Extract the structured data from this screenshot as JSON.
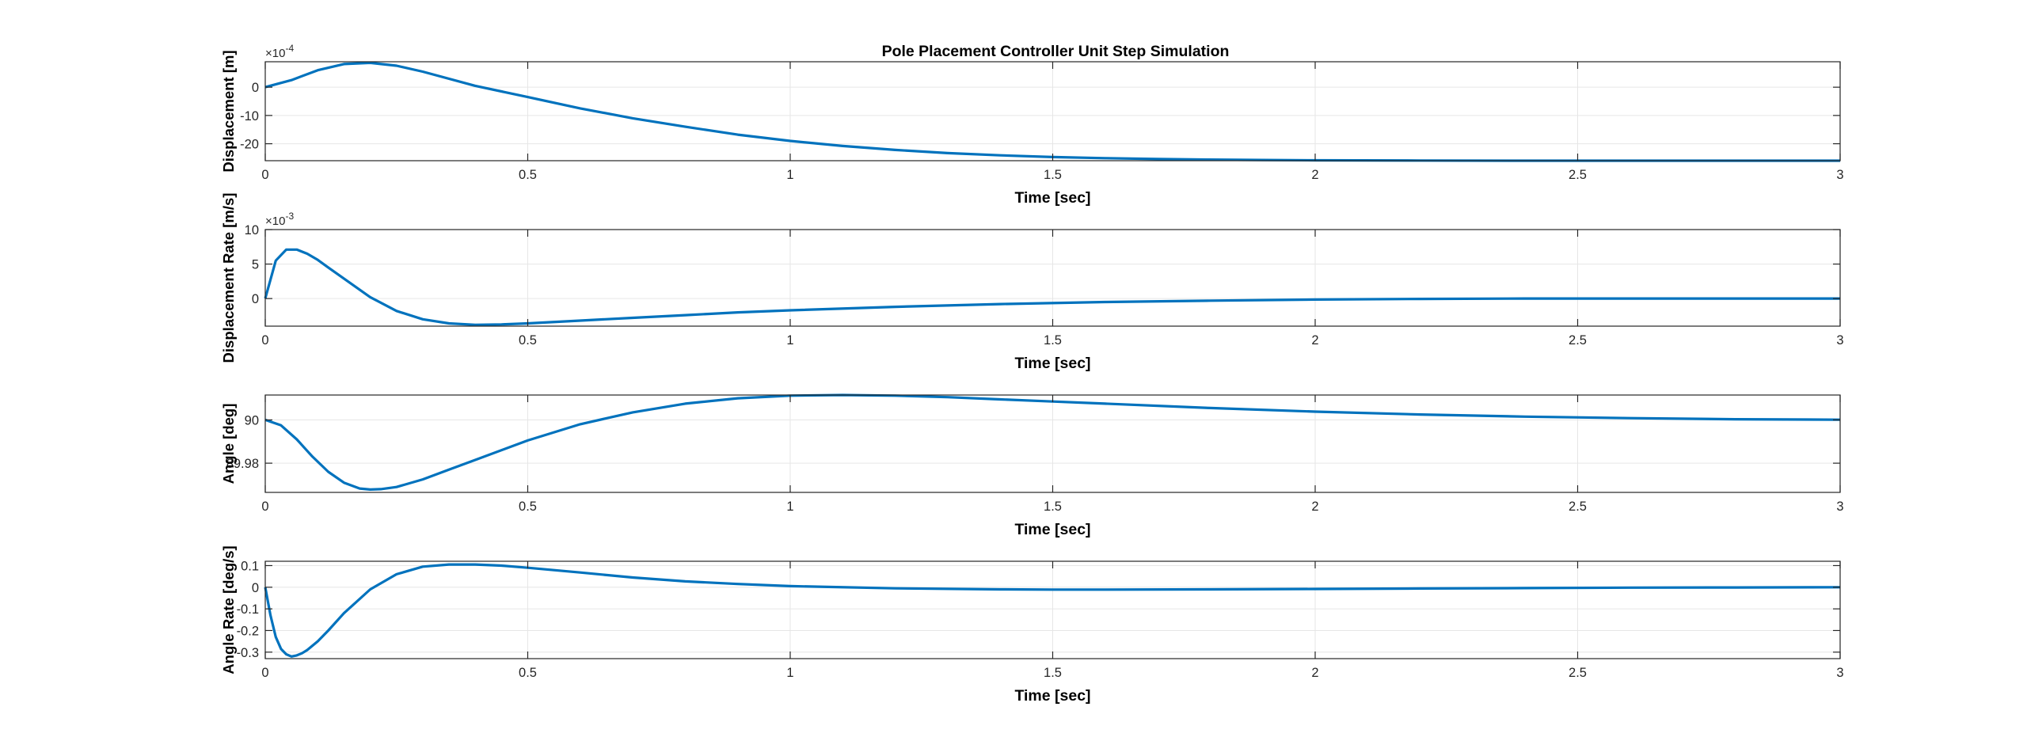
{
  "figure_title": "Pole Placement Controller Unit Step Simulation",
  "colors": {
    "line": "#0072BD",
    "axis": "#262626",
    "grid": "#e6e6e6"
  },
  "chart_data": [
    {
      "type": "line",
      "title": "Pole Placement Controller Unit Step Simulation",
      "xlabel": "Time [sec]",
      "ylabel": "Displacement [m]",
      "exponent_label": "×10^-4",
      "scale": 0.0001,
      "xlim": [
        0,
        3
      ],
      "ylim": [
        -26,
        9
      ],
      "x_ticks": [
        0,
        0.5,
        1,
        1.5,
        2,
        2.5,
        3
      ],
      "x_ticklabels": [
        "0",
        "0.5",
        "1",
        "1.5",
        "2",
        "2.5",
        "3"
      ],
      "y_ticks": [
        -20,
        -10,
        0
      ],
      "y_ticklabels": [
        "-20",
        "-10",
        "0"
      ],
      "grid": true,
      "series": [
        {
          "x": [
            0,
            0.05,
            0.1,
            0.15,
            0.2,
            0.25,
            0.3,
            0.4,
            0.5,
            0.6,
            0.7,
            0.8,
            0.9,
            1.0,
            1.1,
            1.2,
            1.3,
            1.4,
            1.5,
            1.6,
            1.7,
            1.8,
            1.9,
            2.0,
            2.2,
            2.4,
            2.6,
            2.8,
            3.0
          ],
          "values": [
            0,
            2.5,
            6,
            8.2,
            8.6,
            7.6,
            5.5,
            0.5,
            -3.5,
            -7.5,
            -11,
            -14,
            -16.8,
            -19,
            -20.8,
            -22.2,
            -23.3,
            -24.1,
            -24.7,
            -25.1,
            -25.4,
            -25.6,
            -25.75,
            -25.85,
            -25.95,
            -26,
            -26,
            -26,
            -26
          ]
        }
      ]
    },
    {
      "type": "line",
      "xlabel": "Time [sec]",
      "ylabel": "Displacement Rate [m/s]",
      "exponent_label": "×10^-3",
      "scale": 0.001,
      "xlim": [
        0,
        3
      ],
      "ylim": [
        -4,
        10
      ],
      "x_ticks": [
        0,
        0.5,
        1,
        1.5,
        2,
        2.5,
        3
      ],
      "x_ticklabels": [
        "0",
        "0.5",
        "1",
        "1.5",
        "2",
        "2.5",
        "3"
      ],
      "y_ticks": [
        0,
        5,
        10
      ],
      "y_ticklabels": [
        "0",
        "5",
        "10"
      ],
      "grid": true,
      "series": [
        {
          "x": [
            0,
            0.02,
            0.04,
            0.06,
            0.08,
            0.1,
            0.12,
            0.15,
            0.2,
            0.25,
            0.3,
            0.35,
            0.4,
            0.45,
            0.5,
            0.6,
            0.7,
            0.8,
            0.9,
            1.0,
            1.2,
            1.4,
            1.6,
            1.8,
            2.0,
            2.2,
            2.4,
            2.6,
            2.8,
            3.0
          ],
          "values": [
            0,
            5.5,
            7.1,
            7.1,
            6.5,
            5.6,
            4.5,
            2.9,
            0.2,
            -1.8,
            -3.0,
            -3.6,
            -3.8,
            -3.75,
            -3.6,
            -3.2,
            -2.8,
            -2.4,
            -2.0,
            -1.7,
            -1.2,
            -0.8,
            -0.5,
            -0.3,
            -0.15,
            -0.05,
            0,
            0,
            0,
            0
          ]
        }
      ]
    },
    {
      "type": "line",
      "xlabel": "Time [sec]",
      "ylabel": "Angle [deg]",
      "xlim": [
        0,
        3
      ],
      "ylim": [
        89.9665,
        90.0115
      ],
      "x_ticks": [
        0,
        0.5,
        1,
        1.5,
        2,
        2.5,
        3
      ],
      "x_ticklabels": [
        "0",
        "0.5",
        "1",
        "1.5",
        "2",
        "2.5",
        "3"
      ],
      "y_ticks": [
        89.98,
        90
      ],
      "y_ticklabels": [
        "89.98",
        "90"
      ],
      "grid": true,
      "series": [
        {
          "x": [
            0,
            0.03,
            0.06,
            0.09,
            0.12,
            0.15,
            0.18,
            0.2,
            0.22,
            0.25,
            0.3,
            0.35,
            0.4,
            0.5,
            0.6,
            0.7,
            0.8,
            0.9,
            1.0,
            1.1,
            1.2,
            1.3,
            1.4,
            1.5,
            1.6,
            1.8,
            2.0,
            2.2,
            2.4,
            2.6,
            2.8,
            3.0
          ],
          "values": [
            90,
            89.9975,
            89.991,
            89.983,
            89.976,
            89.971,
            89.9683,
            89.9678,
            89.968,
            89.969,
            89.9725,
            89.977,
            89.9815,
            89.9905,
            89.998,
            90.0035,
            90.0075,
            90.01,
            90.0112,
            90.0115,
            90.0112,
            90.0105,
            90.0095,
            90.0085,
            90.0075,
            90.0055,
            90.0038,
            90.0025,
            90.0015,
            90.0008,
            90.0003,
            90.0001
          ]
        }
      ]
    },
    {
      "type": "line",
      "xlabel": "Time [sec]",
      "ylabel": "Angle Rate [deg/s]",
      "xlim": [
        0,
        3
      ],
      "ylim": [
        -0.33,
        0.12
      ],
      "x_ticks": [
        0,
        0.5,
        1,
        1.5,
        2,
        2.5,
        3
      ],
      "x_ticklabels": [
        "0",
        "0.5",
        "1",
        "1.5",
        "2",
        "2.5",
        "3"
      ],
      "y_ticks": [
        -0.3,
        -0.2,
        -0.1,
        0,
        0.1
      ],
      "y_ticklabels": [
        "-0.3",
        "-0.2",
        "-0.1",
        "0",
        "0.1"
      ],
      "grid": true,
      "series": [
        {
          "x": [
            0,
            0.01,
            0.02,
            0.03,
            0.04,
            0.05,
            0.06,
            0.07,
            0.08,
            0.1,
            0.12,
            0.15,
            0.2,
            0.25,
            0.3,
            0.35,
            0.4,
            0.45,
            0.5,
            0.6,
            0.7,
            0.8,
            0.9,
            1.0,
            1.2,
            1.4,
            1.5,
            1.6,
            1.8,
            2.0,
            2.2,
            2.4,
            2.6,
            2.8,
            3.0
          ],
          "values": [
            0,
            -0.13,
            -0.23,
            -0.285,
            -0.31,
            -0.32,
            -0.315,
            -0.305,
            -0.29,
            -0.25,
            -0.2,
            -0.12,
            -0.01,
            0.06,
            0.095,
            0.105,
            0.105,
            0.1,
            0.09,
            0.068,
            0.045,
            0.027,
            0.015,
            0.005,
            -0.005,
            -0.01,
            -0.011,
            -0.011,
            -0.01,
            -0.008,
            -0.006,
            -0.004,
            -0.002,
            -0.001,
            0
          ]
        }
      ]
    }
  ]
}
